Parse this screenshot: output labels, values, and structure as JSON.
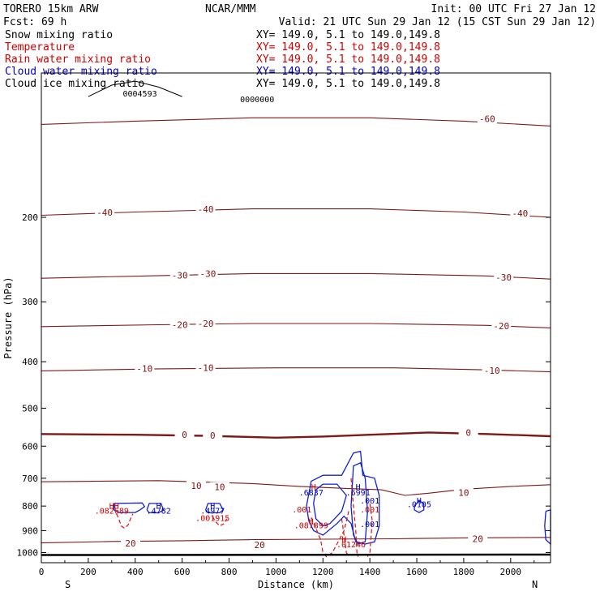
{
  "header": {
    "model": "TORERO  15km ARW",
    "center": "NCAR/MMM",
    "init": "Init: 00 UTC Fri 27 Jan 12",
    "fcst": "Fcst:   69 h",
    "valid": "Valid: 21 UTC Sun 29 Jan 12 (15 CST Sun 29 Jan 12)"
  },
  "fields": [
    {
      "name": "Snow mixing ratio",
      "xy": "XY= 149.0,  5.1 to 149.0,149.8",
      "color": "#000000"
    },
    {
      "name": "Temperature",
      "xy": "XY= 149.0,  5.1 to 149.0,149.8",
      "color": "#d00000"
    },
    {
      "name": "Rain water mixing ratio",
      "xy": "XY= 149.0,  5.1 to 149.0,149.8",
      "color": "#d00000"
    },
    {
      "name": "Cloud water mixing ratio",
      "xy": "XY= 149.0,  5.1 to 149.0,149.8",
      "color": "#0000c0"
    },
    {
      "name": "Cloud ice mixing ratio",
      "xy": "XY= 149.0,  5.1 to 149.0,149.8",
      "color": "#000000"
    }
  ],
  "chart_data": {
    "type": "line",
    "xlabel": "Distance (km)",
    "ylabel": "Pressure (hPa)",
    "xlim": [
      0,
      2170
    ],
    "ylim": [
      1050,
      100
    ],
    "yscale": "log",
    "xticks": [
      0,
      200,
      400,
      600,
      800,
      1000,
      1200,
      1400,
      1600,
      1800,
      2000
    ],
    "xtick_labels": [
      "0",
      "200",
      "400",
      "600",
      "800",
      "1000",
      "1200",
      "1400",
      "1600",
      "1800",
      "2000"
    ],
    "yticks": [
      200,
      300,
      400,
      500,
      600,
      700,
      800,
      900,
      1000
    ],
    "ytick_labels": [
      "200",
      "300",
      "400",
      "500",
      "600",
      "700",
      "800",
      "900",
      "1000"
    ],
    "left_end_label": "S",
    "right_end_label": "N",
    "temperature_isotherms": [
      {
        "label": "-60",
        "points": [
          [
            0,
            128
          ],
          [
            400,
            126
          ],
          [
            900,
            124
          ],
          [
            1400,
            124
          ],
          [
            1800,
            126
          ],
          [
            2170,
            129
          ]
        ]
      },
      {
        "label": "-40",
        "points": [
          [
            0,
            198
          ],
          [
            400,
            195
          ],
          [
            900,
            192
          ],
          [
            1400,
            192
          ],
          [
            1800,
            195
          ],
          [
            2170,
            200
          ]
        ]
      },
      {
        "label": "-30",
        "points": [
          [
            0,
            268
          ],
          [
            450,
            265
          ],
          [
            900,
            262
          ],
          [
            1400,
            262
          ],
          [
            1900,
            265
          ],
          [
            2170,
            269
          ]
        ]
      },
      {
        "label": "-20",
        "points": [
          [
            0,
            338
          ],
          [
            500,
            335
          ],
          [
            900,
            333
          ],
          [
            1400,
            333
          ],
          [
            1900,
            336
          ],
          [
            2170,
            340
          ]
        ]
      },
      {
        "label": "-10",
        "points": [
          [
            0,
            418
          ],
          [
            500,
            414
          ],
          [
            1000,
            412
          ],
          [
            1500,
            412
          ],
          [
            1900,
            416
          ],
          [
            2170,
            420
          ]
        ]
      },
      {
        "label": "0",
        "points": [
          [
            0,
            566
          ],
          [
            400,
            568
          ],
          [
            700,
            571
          ],
          [
            1000,
            576
          ],
          [
            1200,
            573
          ],
          [
            1400,
            568
          ],
          [
            1650,
            562
          ],
          [
            1900,
            566
          ],
          [
            2170,
            572
          ]
        ]
      },
      {
        "label": "10",
        "points": [
          [
            0,
            712
          ],
          [
            500,
            708
          ],
          [
            900,
            718
          ],
          [
            1100,
            728
          ],
          [
            1300,
            735
          ],
          [
            1450,
            740
          ],
          [
            1550,
            760
          ],
          [
            1650,
            752
          ],
          [
            1800,
            738
          ],
          [
            2000,
            728
          ],
          [
            2170,
            722
          ]
        ]
      },
      {
        "label": "20",
        "points": [
          [
            0,
            955
          ],
          [
            300,
            948
          ],
          [
            600,
            945
          ],
          [
            900,
            940
          ],
          [
            1200,
            938
          ],
          [
            1500,
            936
          ],
          [
            1800,
            932
          ],
          [
            2170,
            930
          ]
        ]
      }
    ],
    "contour_labels": [
      {
        "text": "-60",
        "x": 1900,
        "p": 125,
        "color": "#801010"
      },
      {
        "text": "-40",
        "x": 270,
        "p": 196,
        "color": "#801010"
      },
      {
        "text": "-40",
        "x": 700,
        "p": 193,
        "color": "#801010"
      },
      {
        "text": "-40",
        "x": 2040,
        "p": 197,
        "color": "#801010"
      },
      {
        "text": "-30",
        "x": 590,
        "p": 265,
        "color": "#801010"
      },
      {
        "text": "-30",
        "x": 710,
        "p": 263,
        "color": "#801010"
      },
      {
        "text": "-30",
        "x": 1970,
        "p": 268,
        "color": "#801010"
      },
      {
        "text": "-20",
        "x": 590,
        "p": 336,
        "color": "#801010"
      },
      {
        "text": "-20",
        "x": 700,
        "p": 334,
        "color": "#801010"
      },
      {
        "text": "-20",
        "x": 1960,
        "p": 338,
        "color": "#801010"
      },
      {
        "text": "-10",
        "x": 440,
        "p": 415,
        "color": "#801010"
      },
      {
        "text": "-10",
        "x": 700,
        "p": 413,
        "color": "#801010"
      },
      {
        "text": "-10",
        "x": 1920,
        "p": 419,
        "color": "#801010"
      },
      {
        "text": "0",
        "x": 610,
        "p": 570,
        "color": "#801010"
      },
      {
        "text": "0",
        "x": 730,
        "p": 572,
        "color": "#801010"
      },
      {
        "text": "0",
        "x": 1820,
        "p": 564,
        "color": "#801010"
      },
      {
        "text": "10",
        "x": 660,
        "p": 728,
        "color": "#801010"
      },
      {
        "text": "10",
        "x": 760,
        "p": 733,
        "color": "#801010"
      },
      {
        "text": "10",
        "x": 1800,
        "p": 753,
        "color": "#801010"
      },
      {
        "text": "20",
        "x": 380,
        "p": 960,
        "color": "#801010"
      },
      {
        "text": "20",
        "x": 930,
        "p": 968,
        "color": "#801010"
      },
      {
        "text": "20",
        "x": 1860,
        "p": 940,
        "color": "#801010"
      }
    ],
    "extrema_markers": [
      {
        "symbol": "HH",
        "x": 310,
        "p": 810,
        "color": "#d00000"
      },
      {
        "symbol": "H",
        "x": 500,
        "p": 810,
        "color": "#0000c0"
      },
      {
        "symbol": "H",
        "x": 730,
        "p": 810,
        "color": "#0000c0"
      },
      {
        "symbol": "H",
        "x": 1160,
        "p": 740,
        "color": "#d00000"
      },
      {
        "symbol": "H",
        "x": 1350,
        "p": 740,
        "color": "#0000c0"
      },
      {
        "symbol": "H",
        "x": 1610,
        "p": 790,
        "color": "#0000c0"
      },
      {
        "symbol": "H",
        "x": 1150,
        "p": 872,
        "color": "#d00000"
      },
      {
        "symbol": "H",
        "x": 1290,
        "p": 950,
        "color": "#d00000"
      }
    ],
    "extrema_values": [
      {
        "text": ".082689",
        "x": 300,
        "p": 830,
        "color": "#d00000"
      },
      {
        "text": ".4782",
        "x": 500,
        "p": 830,
        "color": "#0000c0"
      },
      {
        "text": ".4977",
        "x": 730,
        "p": 830,
        "color": "#0000c0"
      },
      {
        "text": ".001915",
        "x": 730,
        "p": 860,
        "color": "#d00000"
      },
      {
        "text": ".6837",
        "x": 1150,
        "p": 760,
        "color": "#0000c0"
      },
      {
        "text": ".6991",
        "x": 1350,
        "p": 760,
        "color": "#0000c0"
      },
      {
        "text": ".0105",
        "x": 1610,
        "p": 805,
        "color": "#0000c0"
      },
      {
        "text": ".001",
        "x": 1400,
        "p": 790,
        "color": "#0000c0"
      },
      {
        "text": ".001",
        "x": 1400,
        "p": 885,
        "color": "#0000c0"
      },
      {
        "text": ".001",
        "x": 1400,
        "p": 825,
        "color": "#d00000"
      },
      {
        "text": ".001",
        "x": 1110,
        "p": 825,
        "color": "#d00000"
      },
      {
        "text": ".087899",
        "x": 1150,
        "p": 890,
        "color": "#d00000"
      },
      {
        "text": ".01246",
        "x": 1320,
        "p": 975,
        "color": "#d00000"
      },
      {
        "text": "0004593",
        "x": 420,
        "p": 112,
        "color": "#000000"
      },
      {
        "text": "0000000",
        "x": 920,
        "p": 115,
        "color": "#000000"
      }
    ],
    "cloud_water_contours": [
      {
        "points": [
          [
            310,
            790
          ],
          [
            430,
            788
          ],
          [
            440,
            802
          ],
          [
            420,
            815
          ],
          [
            400,
            825
          ],
          [
            330,
            825
          ],
          [
            310,
            815
          ],
          [
            310,
            790
          ]
        ]
      },
      {
        "points": [
          [
            450,
            815
          ],
          [
            460,
            790
          ],
          [
            510,
            790
          ],
          [
            520,
            815
          ],
          [
            500,
            826
          ],
          [
            460,
            826
          ],
          [
            450,
            815
          ]
        ]
      },
      {
        "points": [
          [
            700,
            815
          ],
          [
            710,
            790
          ],
          [
            760,
            790
          ],
          [
            775,
            815
          ],
          [
            760,
            826
          ],
          [
            710,
            826
          ],
          [
            700,
            815
          ]
        ]
      },
      {
        "points": [
          [
            1130,
            800
          ],
          [
            1150,
            710
          ],
          [
            1200,
            690
          ],
          [
            1280,
            690
          ],
          [
            1330,
            620
          ],
          [
            1360,
            615
          ],
          [
            1370,
            690
          ],
          [
            1420,
            700
          ],
          [
            1440,
            760
          ],
          [
            1440,
            880
          ],
          [
            1420,
            950
          ],
          [
            1380,
            960
          ],
          [
            1340,
            950
          ],
          [
            1320,
            870
          ],
          [
            1290,
            840
          ],
          [
            1260,
            870
          ],
          [
            1200,
            920
          ],
          [
            1160,
            900
          ],
          [
            1140,
            860
          ],
          [
            1130,
            800
          ]
        ]
      },
      {
        "points": [
          [
            1160,
            790
          ],
          [
            1170,
            740
          ],
          [
            1200,
            720
          ],
          [
            1260,
            720
          ],
          [
            1300,
            760
          ],
          [
            1280,
            820
          ],
          [
            1230,
            870
          ],
          [
            1200,
            880
          ],
          [
            1170,
            850
          ],
          [
            1160,
            790
          ]
        ]
      },
      {
        "points": [
          [
            1320,
            800
          ],
          [
            1330,
            660
          ],
          [
            1360,
            650
          ],
          [
            1380,
            700
          ],
          [
            1390,
            820
          ],
          [
            1380,
            950
          ],
          [
            1350,
            960
          ],
          [
            1330,
            920
          ],
          [
            1320,
            800
          ]
        ]
      },
      {
        "points": [
          [
            1590,
            800
          ],
          [
            1610,
            780
          ],
          [
            1630,
            790
          ],
          [
            1630,
            815
          ],
          [
            1610,
            825
          ],
          [
            1590,
            815
          ],
          [
            1590,
            800
          ]
        ]
      },
      {
        "points": [
          [
            2150,
            820
          ],
          [
            2170,
            815
          ],
          [
            2170,
            960
          ],
          [
            2150,
            940
          ],
          [
            2145,
            880
          ],
          [
            2150,
            820
          ]
        ]
      }
    ],
    "rain_water_contours": [
      {
        "points": [
          [
            320,
            830
          ],
          [
            330,
            850
          ],
          [
            340,
            880
          ],
          [
            355,
            890
          ],
          [
            370,
            875
          ],
          [
            380,
            850
          ],
          [
            390,
            830
          ]
        ]
      },
      {
        "points": [
          [
            730,
            840
          ],
          [
            740,
            860
          ],
          [
            760,
            880
          ],
          [
            780,
            870
          ],
          [
            790,
            850
          ]
        ]
      },
      {
        "points": [
          [
            1150,
            845
          ],
          [
            1170,
            890
          ],
          [
            1190,
            940
          ],
          [
            1200,
            1000
          ],
          [
            1215,
            1020
          ],
          [
            1240,
            1000
          ],
          [
            1260,
            960
          ],
          [
            1290,
            900
          ],
          [
            1300,
            860
          ],
          [
            1310,
            820
          ]
        ]
      },
      {
        "points": [
          [
            1280,
            850
          ],
          [
            1290,
            920
          ],
          [
            1300,
            1000
          ],
          [
            1310,
            1020
          ]
        ]
      },
      {
        "points": [
          [
            1400,
            790
          ],
          [
            1410,
            860
          ],
          [
            1405,
            930
          ],
          [
            1400,
            1000
          ],
          [
            1390,
            1020
          ]
        ]
      },
      {
        "points": [
          [
            1320,
            700
          ],
          [
            1330,
            800
          ],
          [
            1340,
            900
          ],
          [
            1345,
            1000
          ],
          [
            1350,
            1020
          ]
        ]
      }
    ],
    "snow_contours": [
      {
        "points": [
          [
            200,
            112
          ],
          [
            300,
            106
          ],
          [
            400,
            104
          ],
          [
            500,
            107
          ],
          [
            600,
            112
          ]
        ]
      }
    ]
  }
}
